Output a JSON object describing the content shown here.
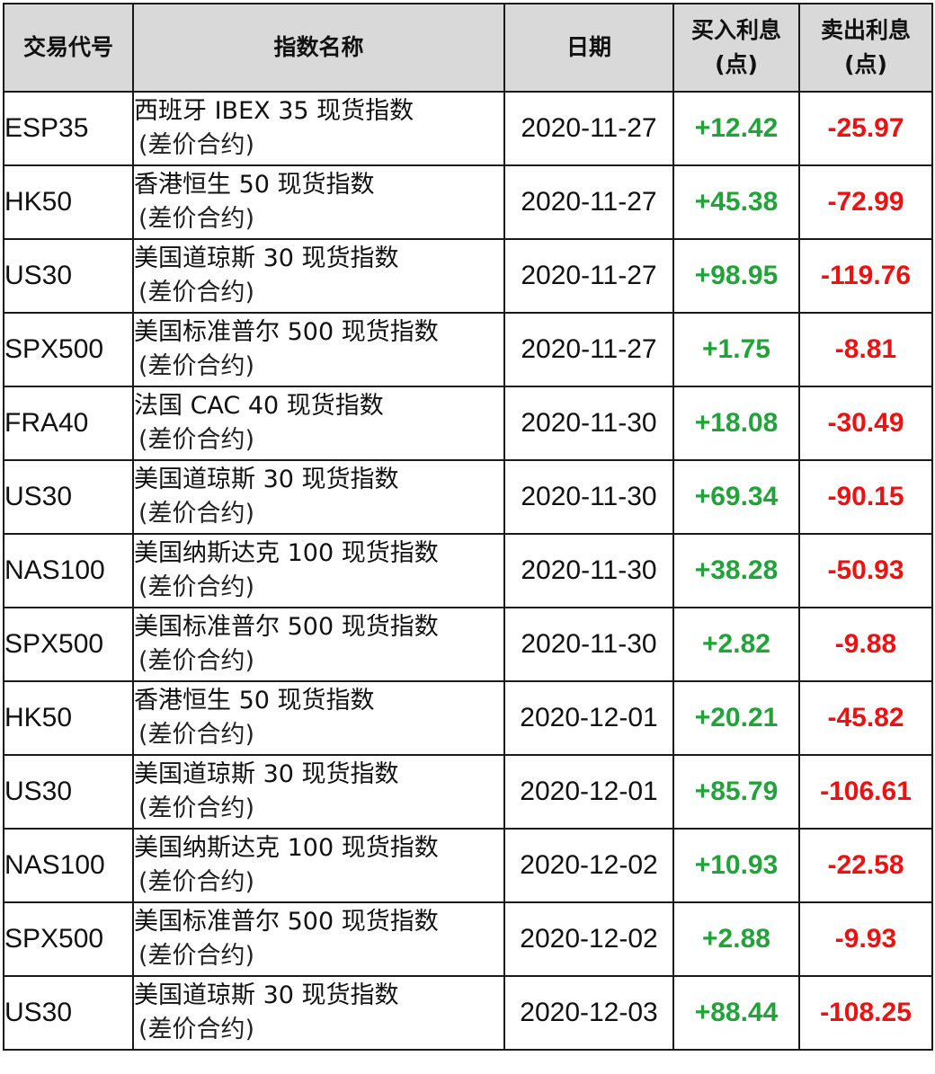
{
  "colors": {
    "positive": "#22a33a",
    "negative": "#ee1111",
    "header_bg": "#d9d9d9"
  },
  "table": {
    "headers": {
      "code": "交易代号",
      "name": "指数名称",
      "date": "日期",
      "buy_line1": "买入利息",
      "buy_line2": "(点)",
      "sell_line1": "卖出利息",
      "sell_line2": "(点)"
    },
    "rows": [
      {
        "code": "ESP35",
        "name": "西班牙 IBEX 35 现货指数",
        "name_sub": "(差价合约)",
        "date": "2020-11-27",
        "buy": "+12.42",
        "sell": "-25.97"
      },
      {
        "code": "HK50",
        "name": "香港恒生 50 现货指数",
        "name_sub": "(差价合约)",
        "date": "2020-11-27",
        "buy": "+45.38",
        "sell": "-72.99"
      },
      {
        "code": "US30",
        "name": "美国道琼斯 30 现货指数",
        "name_sub": "(差价合约)",
        "date": "2020-11-27",
        "buy": "+98.95",
        "sell": "-119.76"
      },
      {
        "code": "SPX500",
        "name": "美国标准普尔 500 现货指数",
        "name_sub": "(差价合约)",
        "date": "2020-11-27",
        "buy": "+1.75",
        "sell": "-8.81"
      },
      {
        "code": "FRA40",
        "name": "法国 CAC 40 现货指数",
        "name_sub": "(差价合约)",
        "date": "2020-11-30",
        "buy": "+18.08",
        "sell": "-30.49"
      },
      {
        "code": "US30",
        "name": "美国道琼斯 30 现货指数",
        "name_sub": "(差价合约)",
        "date": "2020-11-30",
        "buy": "+69.34",
        "sell": "-90.15"
      },
      {
        "code": "NAS100",
        "name": "美国纳斯达克 100 现货指数",
        "name_sub": "(差价合约)",
        "date": "2020-11-30",
        "buy": "+38.28",
        "sell": "-50.93"
      },
      {
        "code": "SPX500",
        "name": "美国标准普尔 500 现货指数",
        "name_sub": "(差价合约)",
        "date": "2020-11-30",
        "buy": "+2.82",
        "sell": "-9.88"
      },
      {
        "code": "HK50",
        "name": "香港恒生 50 现货指数",
        "name_sub": "(差价合约)",
        "date": "2020-12-01",
        "buy": "+20.21",
        "sell": "-45.82"
      },
      {
        "code": "US30",
        "name": "美国道琼斯 30 现货指数",
        "name_sub": "(差价合约)",
        "date": "2020-12-01",
        "buy": "+85.79",
        "sell": "-106.61"
      },
      {
        "code": "NAS100",
        "name": "美国纳斯达克 100 现货指数",
        "name_sub": "(差价合约)",
        "date": "2020-12-02",
        "buy": "+10.93",
        "sell": "-22.58"
      },
      {
        "code": "SPX500",
        "name": "美国标准普尔 500 现货指数",
        "name_sub": "(差价合约)",
        "date": "2020-12-02",
        "buy": "+2.88",
        "sell": "-9.93"
      },
      {
        "code": "US30",
        "name": "美国道琼斯 30 现货指数",
        "name_sub": "(差价合约)",
        "date": "2020-12-03",
        "buy": "+88.44",
        "sell": "-108.25"
      }
    ]
  }
}
